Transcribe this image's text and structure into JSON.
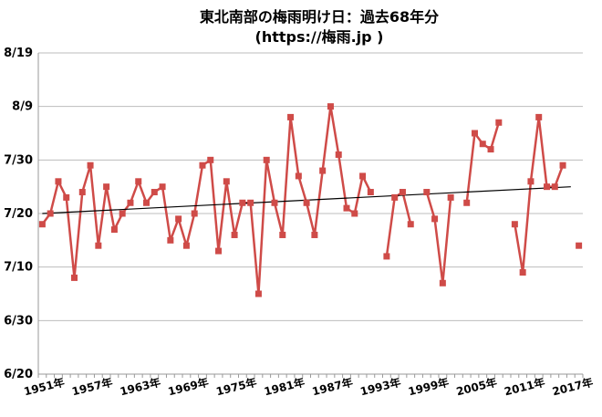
{
  "chart_data": {
    "type": "line",
    "title": "東北南部の梅雨明け日：過去68年分",
    "subtitle": "(https://梅雨.jp )",
    "xlabel": "",
    "ylabel": "",
    "x_tick_labels": [
      "1951年",
      "1957年",
      "1963年",
      "1969年",
      "1975年",
      "1981年",
      "1987年",
      "1993年",
      "1999年",
      "2005年",
      "2011年",
      "2017年"
    ],
    "x_tick_years": [
      1951,
      1957,
      1963,
      1969,
      1975,
      1981,
      1987,
      1993,
      1999,
      2005,
      2011,
      2017
    ],
    "xlim": [
      1951,
      2018
    ],
    "y_tick_labels": [
      "6/20",
      "6/30",
      "7/10",
      "7/20",
      "7/30",
      "8/9",
      "8/19"
    ],
    "y_tick_values": [
      "06-20",
      "06-30",
      "07-10",
      "07-20",
      "07-30",
      "08-09",
      "08-19"
    ],
    "ylim": [
      "06-20",
      "08-19"
    ],
    "grid": true,
    "colors": {
      "series": "#cf4b48",
      "trend": "#000000",
      "grid": "#bdbdbd"
    },
    "series": [
      {
        "x": [
          1951,
          1952,
          1953,
          1954,
          1955,
          1956,
          1957,
          1958,
          1959,
          1960,
          1961,
          1962,
          1963,
          1964,
          1965,
          1966,
          1967,
          1968,
          1969,
          1970,
          1971,
          1972,
          1973,
          1974,
          1975,
          1976,
          1977,
          1978,
          1979,
          1980,
          1981,
          1982,
          1983,
          1984,
          1985,
          1986,
          1987,
          1988,
          1989,
          1990,
          1991,
          1992,
          1993,
          1994,
          1995,
          1996,
          1997,
          1998,
          1999,
          2000,
          2001,
          2002,
          2003,
          2004,
          2005,
          2006,
          2007,
          2008,
          2009,
          2010,
          2011,
          2012,
          2013,
          2014,
          2015,
          2016,
          2017,
          2018
        ],
        "dates": [
          "07-18",
          "07-20",
          "07-26",
          "07-23",
          "07-08",
          "07-24",
          "07-29",
          "07-14",
          "07-25",
          "07-17",
          "07-20",
          "07-22",
          "07-26",
          "07-22",
          "07-24",
          "07-25",
          "07-15",
          "07-19",
          "07-14",
          "07-20",
          "07-29",
          "07-30",
          "07-13",
          "07-26",
          "07-16",
          "07-22",
          "07-22",
          "07-05",
          "07-30",
          "07-22",
          "07-16",
          "08-07",
          "07-27",
          "07-22",
          "07-16",
          "07-28",
          "08-09",
          "07-31",
          "07-21",
          "07-20",
          "07-27",
          "07-24",
          null,
          "07-12",
          "07-23",
          "07-24",
          "07-18",
          null,
          "07-24",
          "07-19",
          "07-07",
          "07-23",
          null,
          "07-22",
          "08-04",
          "08-02",
          "08-01",
          "08-06",
          null,
          "07-18",
          "07-09",
          "07-26",
          "08-07",
          "07-25",
          "07-25",
          "07-29",
          null,
          "07-14"
        ]
      }
    ],
    "trend_line": {
      "x": [
        1951,
        2017
      ],
      "dates": [
        "07-20",
        "07-25"
      ]
    }
  }
}
